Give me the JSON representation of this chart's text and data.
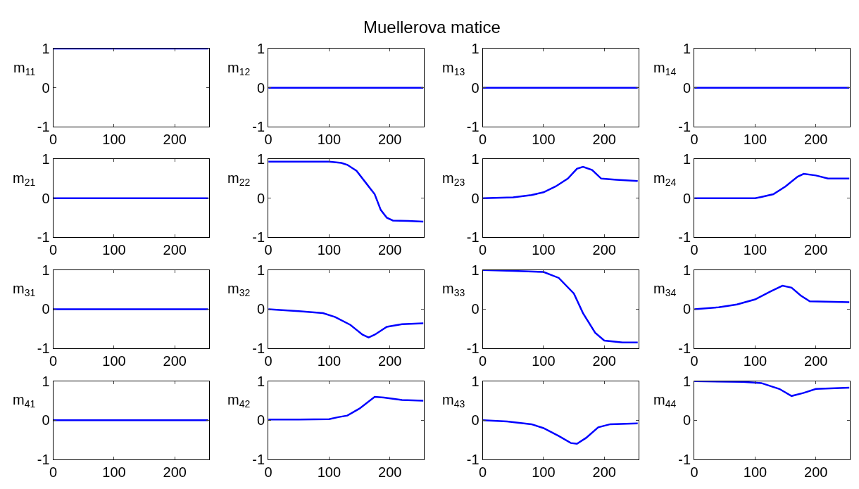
{
  "chart_data": [
    {
      "type": "line",
      "ylabel": "m$_{11}$",
      "x": [
        0,
        50,
        100,
        150,
        200,
        255
      ],
      "series": [
        {
          "color": "#0000ff",
          "values": [
            1,
            1,
            1,
            1,
            1,
            1
          ]
        }
      ],
      "xlim": [
        0,
        256
      ],
      "ylim": [
        -1,
        1
      ],
      "xticks": [
        0,
        100,
        200
      ],
      "yticks": [
        -1,
        0,
        1
      ]
    },
    {
      "type": "line",
      "title": "Muellerova matice",
      "ylabel": "m$_{12}$",
      "x": [
        0,
        50,
        100,
        150,
        200,
        255
      ],
      "series": [
        {
          "color": "#0000ff",
          "values": [
            0,
            0,
            0,
            0,
            0,
            0
          ]
        }
      ],
      "xlim": [
        0,
        256
      ],
      "ylim": [
        -1,
        1
      ],
      "xticks": [
        0,
        100,
        200
      ],
      "yticks": [
        -1,
        0,
        1
      ]
    },
    {
      "type": "line",
      "ylabel": "m$_{13}$",
      "x": [
        0,
        50,
        100,
        150,
        200,
        255
      ],
      "series": [
        {
          "color": "#0000ff",
          "values": [
            0,
            0,
            0,
            0,
            0,
            0
          ]
        }
      ],
      "xlim": [
        0,
        256
      ],
      "ylim": [
        -1,
        1
      ],
      "xticks": [
        0,
        100,
        200
      ],
      "yticks": [
        -1,
        0,
        1
      ]
    },
    {
      "type": "line",
      "ylabel": "m$_{14}$",
      "x": [
        0,
        50,
        100,
        150,
        200,
        255
      ],
      "series": [
        {
          "color": "#0000ff",
          "values": [
            0,
            0,
            0,
            0,
            0,
            0
          ]
        }
      ],
      "xlim": [
        0,
        256
      ],
      "ylim": [
        -1,
        1
      ],
      "xticks": [
        0,
        100,
        200
      ],
      "yticks": [
        -1,
        0,
        1
      ]
    },
    {
      "type": "line",
      "ylabel": "m$_{21}$",
      "x": [
        0,
        50,
        100,
        150,
        200,
        255
      ],
      "series": [
        {
          "color": "#0000ff",
          "values": [
            0,
            0,
            0,
            0,
            0,
            0
          ]
        }
      ],
      "xlim": [
        0,
        256
      ],
      "ylim": [
        -1,
        1
      ],
      "xticks": [
        0,
        100,
        200
      ],
      "yticks": [
        -1,
        0,
        1
      ]
    },
    {
      "type": "line",
      "ylabel": "m$_{22}$",
      "x": [
        0,
        50,
        100,
        120,
        130,
        145,
        160,
        175,
        185,
        195,
        205,
        230,
        255
      ],
      "series": [
        {
          "color": "#0000ff",
          "values": [
            0.93,
            0.93,
            0.93,
            0.9,
            0.85,
            0.7,
            0.4,
            0.1,
            -0.3,
            -0.5,
            -0.57,
            -0.58,
            -0.6
          ]
        }
      ],
      "xlim": [
        0,
        256
      ],
      "ylim": [
        -1,
        1
      ],
      "xticks": [
        0,
        100,
        200
      ],
      "yticks": [
        -1,
        0,
        1
      ]
    },
    {
      "type": "line",
      "ylabel": "m$_{23}$",
      "x": [
        0,
        50,
        80,
        100,
        120,
        140,
        155,
        165,
        180,
        195,
        220,
        255
      ],
      "series": [
        {
          "color": "#0000ff",
          "values": [
            0,
            0.02,
            0.08,
            0.15,
            0.3,
            0.5,
            0.75,
            0.8,
            0.72,
            0.5,
            0.47,
            0.44
          ]
        }
      ],
      "xlim": [
        0,
        256
      ],
      "ylim": [
        -1,
        1
      ],
      "xticks": [
        0,
        100,
        200
      ],
      "yticks": [
        -1,
        0,
        1
      ]
    },
    {
      "type": "line",
      "ylabel": "m$_{24}$",
      "x": [
        0,
        50,
        100,
        110,
        130,
        150,
        170,
        180,
        200,
        220,
        255
      ],
      "series": [
        {
          "color": "#0000ff",
          "values": [
            0,
            0,
            0,
            0.03,
            0.1,
            0.3,
            0.55,
            0.62,
            0.58,
            0.5,
            0.5
          ]
        }
      ],
      "xlim": [
        0,
        256
      ],
      "ylim": [
        -1,
        1
      ],
      "xticks": [
        0,
        100,
        200
      ],
      "yticks": [
        -1,
        0,
        1
      ]
    },
    {
      "type": "line",
      "ylabel": "m$_{31}$",
      "x": [
        0,
        50,
        100,
        150,
        200,
        255
      ],
      "series": [
        {
          "color": "#0000ff",
          "values": [
            0,
            0,
            0,
            0,
            0,
            0
          ]
        }
      ],
      "xlim": [
        0,
        256
      ],
      "ylim": [
        -1,
        1
      ],
      "xticks": [
        0,
        100,
        200
      ],
      "yticks": [
        -1,
        0,
        1
      ]
    },
    {
      "type": "line",
      "ylabel": "m$_{32}$",
      "x": [
        0,
        50,
        90,
        110,
        135,
        155,
        165,
        175,
        195,
        220,
        255
      ],
      "series": [
        {
          "color": "#0000ff",
          "values": [
            0,
            -0.05,
            -0.1,
            -0.2,
            -0.4,
            -0.65,
            -0.72,
            -0.65,
            -0.45,
            -0.38,
            -0.36
          ]
        }
      ],
      "xlim": [
        0,
        256
      ],
      "ylim": [
        -1,
        1
      ],
      "xticks": [
        0,
        100,
        200
      ],
      "yticks": [
        -1,
        0,
        1
      ]
    },
    {
      "type": "line",
      "ylabel": "m$_{33}$",
      "x": [
        0,
        50,
        100,
        125,
        150,
        165,
        185,
        200,
        230,
        255
      ],
      "series": [
        {
          "color": "#0000ff",
          "values": [
            1,
            0.98,
            0.95,
            0.8,
            0.4,
            -0.1,
            -0.6,
            -0.8,
            -0.85,
            -0.85
          ]
        }
      ],
      "xlim": [
        0,
        256
      ],
      "ylim": [
        -1,
        1
      ],
      "xticks": [
        0,
        100,
        200
      ],
      "yticks": [
        -1,
        0,
        1
      ]
    },
    {
      "type": "line",
      "ylabel": "m$_{34}$",
      "x": [
        0,
        40,
        70,
        100,
        125,
        145,
        160,
        175,
        190,
        255
      ],
      "series": [
        {
          "color": "#0000ff",
          "values": [
            0,
            0.05,
            0.12,
            0.25,
            0.45,
            0.6,
            0.55,
            0.35,
            0.2,
            0.18
          ]
        }
      ],
      "xlim": [
        0,
        256
      ],
      "ylim": [
        -1,
        1
      ],
      "xticks": [
        0,
        100,
        200
      ],
      "yticks": [
        -1,
        0,
        1
      ]
    },
    {
      "type": "line",
      "ylabel": "m$_{41}$",
      "x": [
        0,
        50,
        100,
        150,
        200,
        255
      ],
      "series": [
        {
          "color": "#0000ff",
          "values": [
            0,
            0,
            0,
            0,
            0,
            0
          ]
        }
      ],
      "xlim": [
        0,
        256
      ],
      "ylim": [
        -1,
        1
      ],
      "xticks": [
        0,
        100,
        200
      ],
      "yticks": [
        -1,
        0,
        1
      ]
    },
    {
      "type": "line",
      "ylabel": "m$_{42}$",
      "x": [
        0,
        50,
        100,
        115,
        130,
        150,
        175,
        190,
        220,
        255
      ],
      "series": [
        {
          "color": "#0000ff",
          "values": [
            0.02,
            0.02,
            0.03,
            0.08,
            0.12,
            0.3,
            0.6,
            0.58,
            0.52,
            0.5
          ]
        }
      ],
      "xlim": [
        0,
        256
      ],
      "ylim": [
        -1,
        1
      ],
      "xticks": [
        0,
        100,
        200
      ],
      "yticks": [
        -1,
        0,
        1
      ]
    },
    {
      "type": "line",
      "ylabel": "m$_{43}$",
      "x": [
        0,
        40,
        80,
        100,
        125,
        145,
        155,
        170,
        190,
        210,
        255
      ],
      "series": [
        {
          "color": "#0000ff",
          "values": [
            0,
            -0.03,
            -0.1,
            -0.2,
            -0.4,
            -0.58,
            -0.6,
            -0.45,
            -0.18,
            -0.1,
            -0.08
          ]
        }
      ],
      "xlim": [
        0,
        256
      ],
      "ylim": [
        -1,
        1
      ],
      "xticks": [
        0,
        100,
        200
      ],
      "yticks": [
        -1,
        0,
        1
      ]
    },
    {
      "type": "line",
      "ylabel": "m$_{44}$",
      "x": [
        0,
        80,
        110,
        140,
        160,
        180,
        200,
        255
      ],
      "series": [
        {
          "color": "#0000ff",
          "values": [
            1,
            0.98,
            0.95,
            0.8,
            0.62,
            0.7,
            0.8,
            0.83
          ]
        }
      ],
      "xlim": [
        0,
        256
      ],
      "ylim": [
        -1,
        1
      ],
      "xticks": [
        0,
        100,
        200
      ],
      "yticks": [
        -1,
        0,
        1
      ]
    }
  ]
}
